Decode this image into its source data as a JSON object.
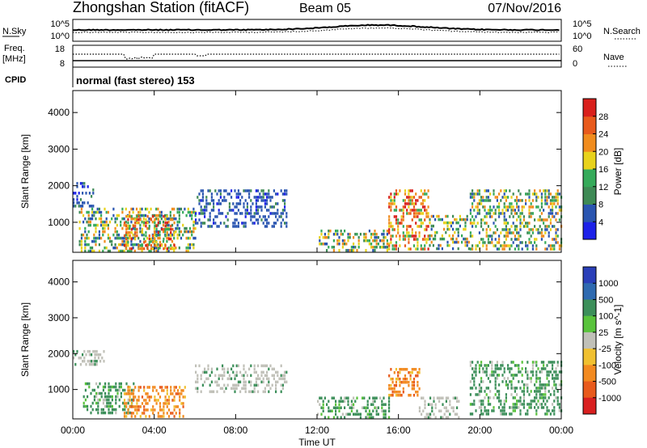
{
  "header": {
    "station": "Zhongshan Station (fitACF)",
    "beam": "Beam 05",
    "date": "07/Nov/2016"
  },
  "top_panels": {
    "nsky": {
      "label": "N.Sky",
      "left_ticks": [
        "10^5",
        "10^0"
      ],
      "right_ticks": [
        "10^5",
        "10^0"
      ],
      "right_label": "N.Search"
    },
    "freq": {
      "label_line1": "Freq.",
      "label_line2": "[MHz]",
      "left_ticks": [
        "18",
        "8"
      ],
      "right_ticks": [
        "60",
        "0"
      ],
      "right_label": "Nave"
    },
    "cpid": {
      "label": "CPID",
      "text": "normal (fast stereo) 153"
    }
  },
  "x_axis": {
    "label": "Time UT",
    "ticks": [
      "00:00",
      "04:00",
      "08:00",
      "12:00",
      "16:00",
      "20:00",
      "00:00"
    ]
  },
  "colors": {
    "power": [
      "#1d21e8",
      "#2a55b0",
      "#3e8a55",
      "#35aa5a",
      "#e8d21c",
      "#f08c1e",
      "#e85a1c",
      "#d9201c"
    ],
    "velocity": [
      "#2a3fb8",
      "#2f6ab0",
      "#3c8f5a",
      "#59c33c",
      "#c0c0b8",
      "#f0c030",
      "#f28a20",
      "#e85a1c",
      "#d92020"
    ]
  },
  "chart_data": [
    {
      "type": "heatmap",
      "title": "Power",
      "xlabel": "Time UT",
      "ylabel": "Slant Range [km]",
      "xlim": [
        "00:00",
        "24:00"
      ],
      "ylim": [
        180,
        4600
      ],
      "yticks": [
        1000,
        2000,
        3000,
        4000
      ],
      "colorbar": {
        "label": "Power [dB]",
        "range": [
          0,
          32
        ],
        "ticks": [
          4,
          8,
          12,
          16,
          20,
          24,
          28
        ]
      },
      "echo_regions": [
        {
          "t": [
            0.0,
            1.0
          ],
          "range": [
            1400,
            2100
          ],
          "level": "low"
        },
        {
          "t": [
            0.3,
            6.0
          ],
          "range": [
            250,
            1400
          ],
          "level": "mixed"
        },
        {
          "t": [
            2.5,
            5.0
          ],
          "range": [
            250,
            1200
          ],
          "level": "high"
        },
        {
          "t": [
            6.0,
            10.5
          ],
          "range": [
            900,
            1900
          ],
          "level": "low"
        },
        {
          "t": [
            12.0,
            15.5
          ],
          "range": [
            250,
            800
          ],
          "level": "mixed"
        },
        {
          "t": [
            15.5,
            17.5
          ],
          "range": [
            250,
            1900
          ],
          "level": "high"
        },
        {
          "t": [
            17.5,
            19.5
          ],
          "range": [
            250,
            1200
          ],
          "level": "mixed"
        },
        {
          "t": [
            19.5,
            24.0
          ],
          "range": [
            300,
            1900
          ],
          "level": "mixed"
        }
      ]
    },
    {
      "type": "heatmap",
      "title": "Velocity",
      "xlabel": "Time UT",
      "ylabel": "Slant Range [km]",
      "xlim": [
        "00:00",
        "24:00"
      ],
      "ylim": [
        180,
        4600
      ],
      "yticks": [
        1000,
        2000,
        3000,
        4000
      ],
      "colorbar": {
        "label": "Velocity [m s^-1]",
        "ticks": [
          "1000",
          "500",
          "100",
          "25",
          "-25",
          "-100",
          "-500",
          "-1000"
        ]
      },
      "echo_regions": [
        {
          "t": [
            0.0,
            1.5
          ],
          "range": [
            1700,
            2100
          ],
          "level": "near-zero"
        },
        {
          "t": [
            0.5,
            3.0
          ],
          "range": [
            300,
            1200
          ],
          "level": "positive"
        },
        {
          "t": [
            2.5,
            5.5
          ],
          "range": [
            250,
            1100
          ],
          "level": "negative"
        },
        {
          "t": [
            6.0,
            10.5
          ],
          "range": [
            900,
            1700
          ],
          "level": "near-zero"
        },
        {
          "t": [
            12.0,
            15.5
          ],
          "range": [
            250,
            800
          ],
          "level": "positive"
        },
        {
          "t": [
            15.5,
            17.0
          ],
          "range": [
            800,
            1600
          ],
          "level": "negative"
        },
        {
          "t": [
            17.0,
            19.0
          ],
          "range": [
            250,
            800
          ],
          "level": "near-zero"
        },
        {
          "t": [
            19.5,
            24.0
          ],
          "range": [
            300,
            1800
          ],
          "level": "positive"
        }
      ]
    }
  ]
}
